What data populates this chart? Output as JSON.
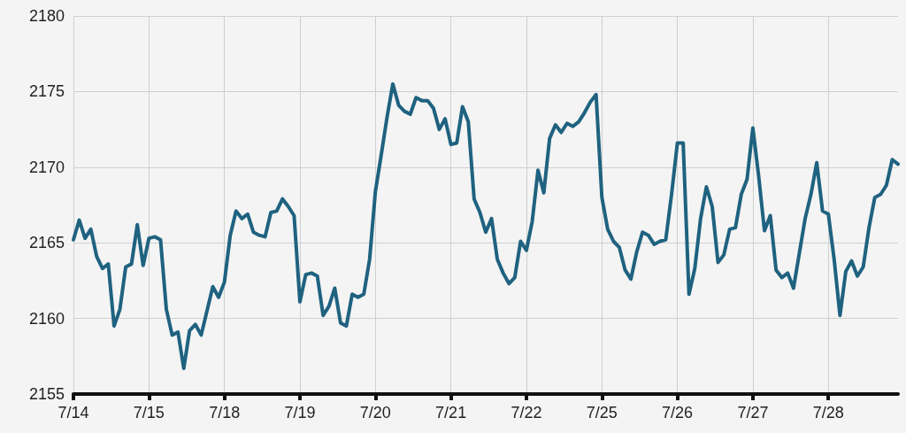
{
  "chart_data": {
    "type": "line",
    "color": "#1f6280",
    "marker": "none",
    "line_style": "solid",
    "grid": true,
    "categories": [
      "7/14",
      null,
      null,
      null,
      null,
      null,
      null,
      null,
      null,
      null,
      null,
      null,
      null,
      "7/15",
      null,
      null,
      null,
      null,
      null,
      null,
      null,
      null,
      null,
      null,
      null,
      null,
      "7/18",
      null,
      null,
      null,
      null,
      null,
      null,
      null,
      null,
      null,
      null,
      null,
      null,
      "7/19",
      null,
      null,
      null,
      null,
      null,
      null,
      null,
      null,
      null,
      null,
      null,
      null,
      "7/20",
      null,
      null,
      null,
      null,
      null,
      null,
      null,
      null,
      null,
      null,
      null,
      null,
      "7/21",
      null,
      null,
      null,
      null,
      null,
      null,
      null,
      null,
      null,
      null,
      null,
      null,
      "7/22",
      null,
      null,
      null,
      null,
      null,
      null,
      null,
      null,
      null,
      null,
      null,
      null,
      "7/25",
      null,
      null,
      null,
      null,
      null,
      null,
      null,
      null,
      null,
      null,
      null,
      null,
      "7/26",
      null,
      null,
      null,
      null,
      null,
      null,
      null,
      null,
      null,
      null,
      null,
      null,
      "7/27",
      null,
      null,
      null,
      null,
      null,
      null,
      null,
      null,
      null,
      null,
      null,
      null,
      "7/28",
      null,
      null,
      null,
      null,
      null,
      null,
      null,
      null,
      null,
      null,
      null,
      null
    ],
    "ylim": [
      2155,
      2180
    ],
    "yticks": [
      2155,
      2160,
      2165,
      2170,
      2175,
      2180
    ],
    "values": [
      2165.2,
      2166.5,
      2165.3,
      2165.9,
      2164.1,
      2163.3,
      2163.6,
      2159.5,
      2160.6,
      2163.4,
      2163.6,
      2166.2,
      2163.5,
      2165.3,
      2165.4,
      2165.2,
      2160.6,
      2158.9,
      2159.1,
      2156.7,
      2159.2,
      2159.6,
      2158.9,
      2160.5,
      2162.1,
      2161.4,
      2162.4,
      2165.5,
      2167.1,
      2166.6,
      2166.9,
      2165.7,
      2165.5,
      2165.4,
      2167.0,
      2167.1,
      2167.9,
      2167.4,
      2166.8,
      2161.1,
      2162.9,
      2163.0,
      2162.8,
      2160.2,
      2160.8,
      2162.0,
      2159.7,
      2159.5,
      2161.6,
      2161.4,
      2161.6,
      2163.9,
      2168.4,
      2170.8,
      2173.3,
      2175.5,
      2174.1,
      2173.7,
      2173.5,
      2174.6,
      2174.4,
      2174.4,
      2173.9,
      2172.5,
      2173.2,
      2171.5,
      2171.6,
      2174.0,
      2173.0,
      2167.9,
      2167.0,
      2165.7,
      2166.6,
      2163.9,
      2163.0,
      2162.3,
      2162.7,
      2165.1,
      2164.5,
      2166.4,
      2169.8,
      2168.3,
      2171.9,
      2172.8,
      2172.3,
      2172.9,
      2172.7,
      2173.0,
      2173.6,
      2174.3,
      2174.8,
      2168.0,
      2165.9,
      2165.1,
      2164.7,
      2163.2,
      2162.6,
      2164.4,
      2165.7,
      2165.5,
      2164.9,
      2165.1,
      2165.2,
      2168.2,
      2171.6,
      2171.6,
      2161.6,
      2163.3,
      2166.6,
      2168.7,
      2167.4,
      2163.7,
      2164.2,
      2165.9,
      2166.0,
      2168.2,
      2169.2,
      2172.6,
      2169.4,
      2165.8,
      2166.8,
      2163.2,
      2162.7,
      2163.0,
      2162.0,
      2164.3,
      2166.6,
      2168.2,
      2170.3,
      2167.1,
      2166.9,
      2163.9,
      2160.2,
      2163.1,
      2163.8,
      2162.8,
      2163.4,
      2166.0,
      2168.0,
      2168.2,
      2168.8,
      2170.5,
      2170.2
    ]
  }
}
